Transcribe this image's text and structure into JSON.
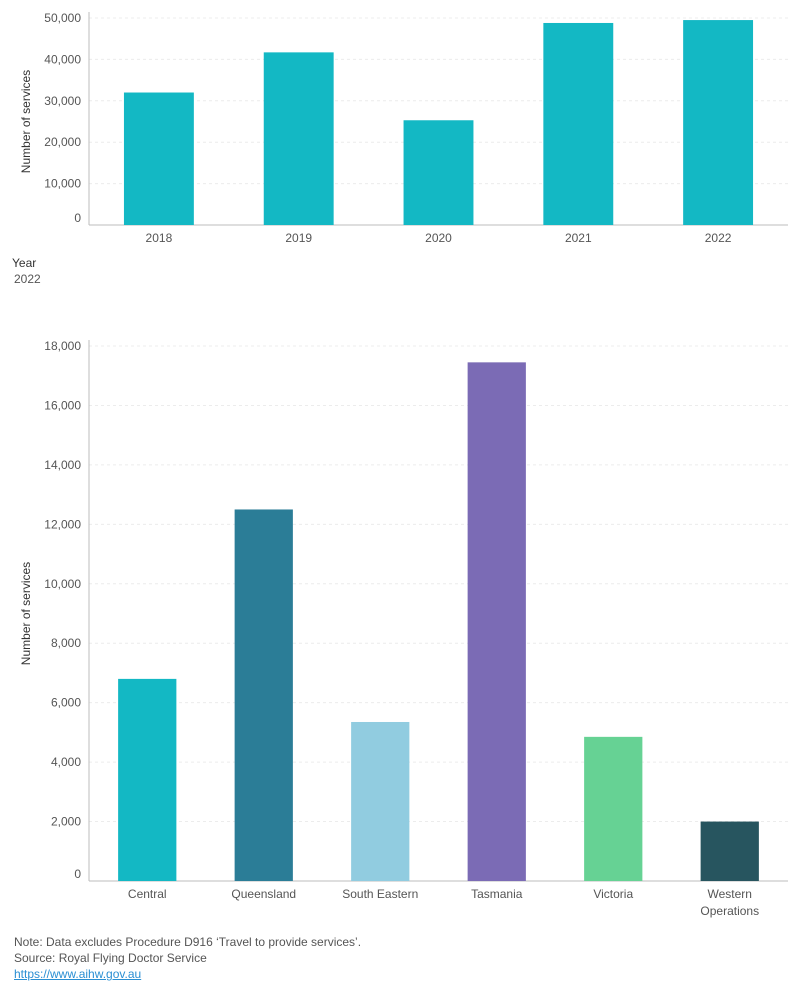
{
  "filter": {
    "label": "Year",
    "value": "2022"
  },
  "notes": {
    "note": "Note: Data excludes Procedure D916 ‘Travel to provide services’.",
    "source": "Source: Royal Flying Doctor Service",
    "link": "https://www.aihw.gov.au"
  },
  "chart_data": [
    {
      "type": "bar",
      "ylabel": "Number of services",
      "categories": [
        "2018",
        "2019",
        "2020",
        "2021",
        "2022"
      ],
      "values": [
        32000,
        41700,
        25300,
        48800,
        49500
      ],
      "ylim": [
        0,
        50000
      ],
      "yticks": [
        0,
        10000,
        20000,
        30000,
        40000,
        50000
      ],
      "ytick_labels": [
        "0",
        "10,000",
        "20,000",
        "30,000",
        "40,000",
        "50,000"
      ],
      "colors": [
        "#13b8c4",
        "#13b8c4",
        "#13b8c4",
        "#13b8c4",
        "#13b8c4"
      ],
      "grid": true
    },
    {
      "type": "bar",
      "ylabel": "Number of services",
      "categories": [
        "Central",
        "Queensland",
        "South Eastern",
        "Tasmania",
        "Victoria",
        "Western Operations"
      ],
      "category_lines": [
        [
          "Central"
        ],
        [
          "Queensland"
        ],
        [
          "South Eastern"
        ],
        [
          "Tasmania"
        ],
        [
          "Victoria"
        ],
        [
          "Western",
          "Operations"
        ]
      ],
      "values": [
        6800,
        12500,
        5350,
        17450,
        4850,
        2000
      ],
      "ylim": [
        0,
        18000
      ],
      "yticks": [
        0,
        2000,
        4000,
        6000,
        8000,
        10000,
        12000,
        14000,
        16000,
        18000
      ],
      "ytick_labels": [
        "0",
        "2,000",
        "4,000",
        "6,000",
        "8,000",
        "10,000",
        "12,000",
        "14,000",
        "16,000",
        "18,000"
      ],
      "colors": [
        "#13b8c4",
        "#2b7d97",
        "#91cce0",
        "#7b6bb5",
        "#66d294",
        "#27555f"
      ],
      "grid": true
    }
  ]
}
